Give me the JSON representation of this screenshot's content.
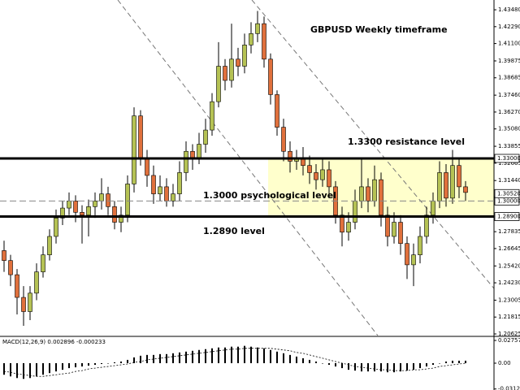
{
  "chart_data": {
    "type": "candlestick",
    "title": "GBPUSD Weekly timeframe",
    "annotations": [
      "1.3300 resistance level",
      "1.3000 psychological level",
      "1.2890 level"
    ],
    "open": [
      1.265,
      1.258,
      1.248,
      1.232,
      1.222,
      1.235,
      1.25,
      1.262,
      1.275,
      1.288,
      1.295,
      1.3,
      1.292,
      1.29,
      1.296,
      1.3,
      1.305,
      1.296,
      1.285,
      1.29,
      1.312,
      1.36,
      1.33,
      1.318,
      1.305,
      1.31,
      1.3,
      1.305,
      1.32,
      1.335,
      1.33,
      1.34,
      1.35,
      1.37,
      1.395,
      1.385,
      1.4,
      1.395,
      1.41,
      1.418,
      1.425,
      1.4,
      1.375,
      1.352,
      1.335,
      1.328,
      1.33,
      1.325,
      1.32,
      1.315,
      1.322,
      1.31,
      1.29,
      1.278,
      1.285,
      1.3,
      1.31,
      1.3,
      1.315,
      1.29,
      1.275,
      1.285,
      1.27,
      1.255,
      1.262,
      1.275,
      1.29,
      1.3,
      1.32,
      1.302,
      1.325,
      1.31
    ],
    "high": [
      1.272,
      1.262,
      1.252,
      1.24,
      1.24,
      1.256,
      1.268,
      1.28,
      1.294,
      1.3,
      1.306,
      1.304,
      1.297,
      1.301,
      1.306,
      1.316,
      1.31,
      1.3,
      1.296,
      1.318,
      1.366,
      1.364,
      1.336,
      1.325,
      1.318,
      1.316,
      1.312,
      1.328,
      1.342,
      1.34,
      1.348,
      1.358,
      1.376,
      1.412,
      1.4,
      1.425,
      1.408,
      1.418,
      1.426,
      1.434,
      1.43,
      1.404,
      1.378,
      1.358,
      1.342,
      1.336,
      1.338,
      1.332,
      1.326,
      1.33,
      1.328,
      1.314,
      1.296,
      1.292,
      1.308,
      1.33,
      1.316,
      1.325,
      1.32,
      1.296,
      1.292,
      1.29,
      1.275,
      1.27,
      1.282,
      1.296,
      1.306,
      1.328,
      1.326,
      1.336,
      1.33,
      1.314
    ],
    "low": [
      1.25,
      1.24,
      1.22,
      1.212,
      1.216,
      1.23,
      1.246,
      1.258,
      1.27,
      1.283,
      1.29,
      1.285,
      1.27,
      1.275,
      1.288,
      1.294,
      1.29,
      1.28,
      1.278,
      1.285,
      1.306,
      1.325,
      1.31,
      1.298,
      1.3,
      1.296,
      1.296,
      1.3,
      1.314,
      1.322,
      1.326,
      1.334,
      1.346,
      1.366,
      1.378,
      1.38,
      1.388,
      1.39,
      1.404,
      1.412,
      1.394,
      1.368,
      1.346,
      1.328,
      1.32,
      1.322,
      1.318,
      1.312,
      1.308,
      1.31,
      1.302,
      1.284,
      1.268,
      1.272,
      1.28,
      1.295,
      1.292,
      1.296,
      1.282,
      1.268,
      1.27,
      1.262,
      1.245,
      1.24,
      1.256,
      1.27,
      1.284,
      1.295,
      1.296,
      1.298,
      1.302,
      1.3
    ],
    "close": [
      1.258,
      1.248,
      1.232,
      1.222,
      1.235,
      1.25,
      1.262,
      1.275,
      1.288,
      1.295,
      1.3,
      1.292,
      1.29,
      1.296,
      1.3,
      1.305,
      1.296,
      1.285,
      1.29,
      1.312,
      1.36,
      1.33,
      1.318,
      1.305,
      1.31,
      1.3,
      1.305,
      1.32,
      1.335,
      1.33,
      1.34,
      1.35,
      1.37,
      1.395,
      1.385,
      1.4,
      1.395,
      1.41,
      1.418,
      1.425,
      1.4,
      1.375,
      1.352,
      1.335,
      1.328,
      1.33,
      1.325,
      1.32,
      1.315,
      1.322,
      1.31,
      1.29,
      1.278,
      1.285,
      1.3,
      1.31,
      1.3,
      1.315,
      1.29,
      1.275,
      1.285,
      1.27,
      1.255,
      1.262,
      1.275,
      1.29,
      1.3,
      1.32,
      1.302,
      1.325,
      1.31,
      1.306
    ],
    "up_color": "#b5c254",
    "down_color": "#e0703c",
    "ylim": [
      1.2051,
      1.4417
    ],
    "yticks": [
      {
        "value": 1.4348,
        "label": "1.43480"
      },
      {
        "value": 1.4229,
        "label": "1.42290"
      },
      {
        "value": 1.411,
        "label": "1.41100"
      },
      1.39875,
      1.38685,
      {
        "value": 1.3746,
        "label": "1.37460"
      },
      {
        "value": 1.3627,
        "label": "1.36270"
      },
      {
        "value": 1.3508,
        "label": "1.35080"
      },
      1.33855,
      1.32665,
      {
        "value": 1.3144,
        "label": "1.31440"
      },
      1.27835,
      1.26645,
      {
        "value": 1.2542,
        "label": "1.25420"
      },
      {
        "value": 1.2423,
        "label": "1.24230"
      },
      1.23005,
      1.21815,
      1.20625
    ],
    "horizontal_lines": [
      {
        "value": 1.33,
        "label": "1.33000",
        "style": "solid"
      },
      {
        "value": 1.3,
        "label": "1.30000",
        "style": "dashed"
      },
      {
        "value": 1.289,
        "label": "1.28900",
        "style": "solid"
      }
    ],
    "current_price": {
      "value": 1.3052,
      "label": "1.30520"
    },
    "zone": {
      "from": 1.289,
      "to": 1.33,
      "color": "#ffffcc"
    },
    "macd": {
      "label": "MACD(12,26,9) 0.002896 -0.000233",
      "ylim": [
        -0.0325,
        0.0315
      ],
      "yticks": [
        0.027572,
        {
          "value": 0,
          "label": "0.00"
        },
        -0.03126
      ],
      "histogram": [
        -0.014,
        -0.016,
        -0.018,
        -0.019,
        -0.018,
        -0.016,
        -0.014,
        -0.012,
        -0.01,
        -0.008,
        -0.006,
        -0.005,
        -0.004,
        -0.003,
        -0.002,
        -0.001,
        0.0,
        0.001,
        0.002,
        0.004,
        0.007,
        0.009,
        0.01,
        0.01,
        0.011,
        0.011,
        0.012,
        0.013,
        0.014,
        0.015,
        0.016,
        0.017,
        0.018,
        0.019,
        0.019,
        0.02,
        0.02,
        0.021,
        0.02,
        0.019,
        0.018,
        0.016,
        0.014,
        0.012,
        0.01,
        0.008,
        0.006,
        0.004,
        0.002,
        0.0,
        -0.002,
        -0.004,
        -0.006,
        -0.008,
        -0.009,
        -0.01,
        -0.01,
        -0.01,
        -0.01,
        -0.011,
        -0.011,
        -0.01,
        -0.009,
        -0.008,
        -0.006,
        -0.004,
        -0.002,
        0.0,
        0.002,
        0.003,
        0.003,
        0.003
      ],
      "signal": [
        -0.01,
        -0.011,
        -0.013,
        -0.014,
        -0.015,
        -0.016,
        -0.016,
        -0.015,
        -0.014,
        -0.013,
        -0.012,
        -0.01,
        -0.009,
        -0.007,
        -0.006,
        -0.005,
        -0.004,
        -0.003,
        -0.002,
        -0.001,
        0.001,
        0.002,
        0.004,
        0.005,
        0.006,
        0.007,
        0.008,
        0.009,
        0.01,
        0.011,
        0.012,
        0.013,
        0.014,
        0.015,
        0.016,
        0.017,
        0.017,
        0.018,
        0.018,
        0.018,
        0.018,
        0.018,
        0.017,
        0.016,
        0.015,
        0.013,
        0.012,
        0.01,
        0.008,
        0.006,
        0.004,
        0.002,
        0.0,
        -0.002,
        -0.004,
        -0.005,
        -0.006,
        -0.007,
        -0.008,
        -0.008,
        -0.009,
        -0.009,
        -0.009,
        -0.008,
        -0.008,
        -0.007,
        -0.006,
        -0.004,
        -0.003,
        -0.002,
        -0.001,
        0.0
      ]
    }
  }
}
